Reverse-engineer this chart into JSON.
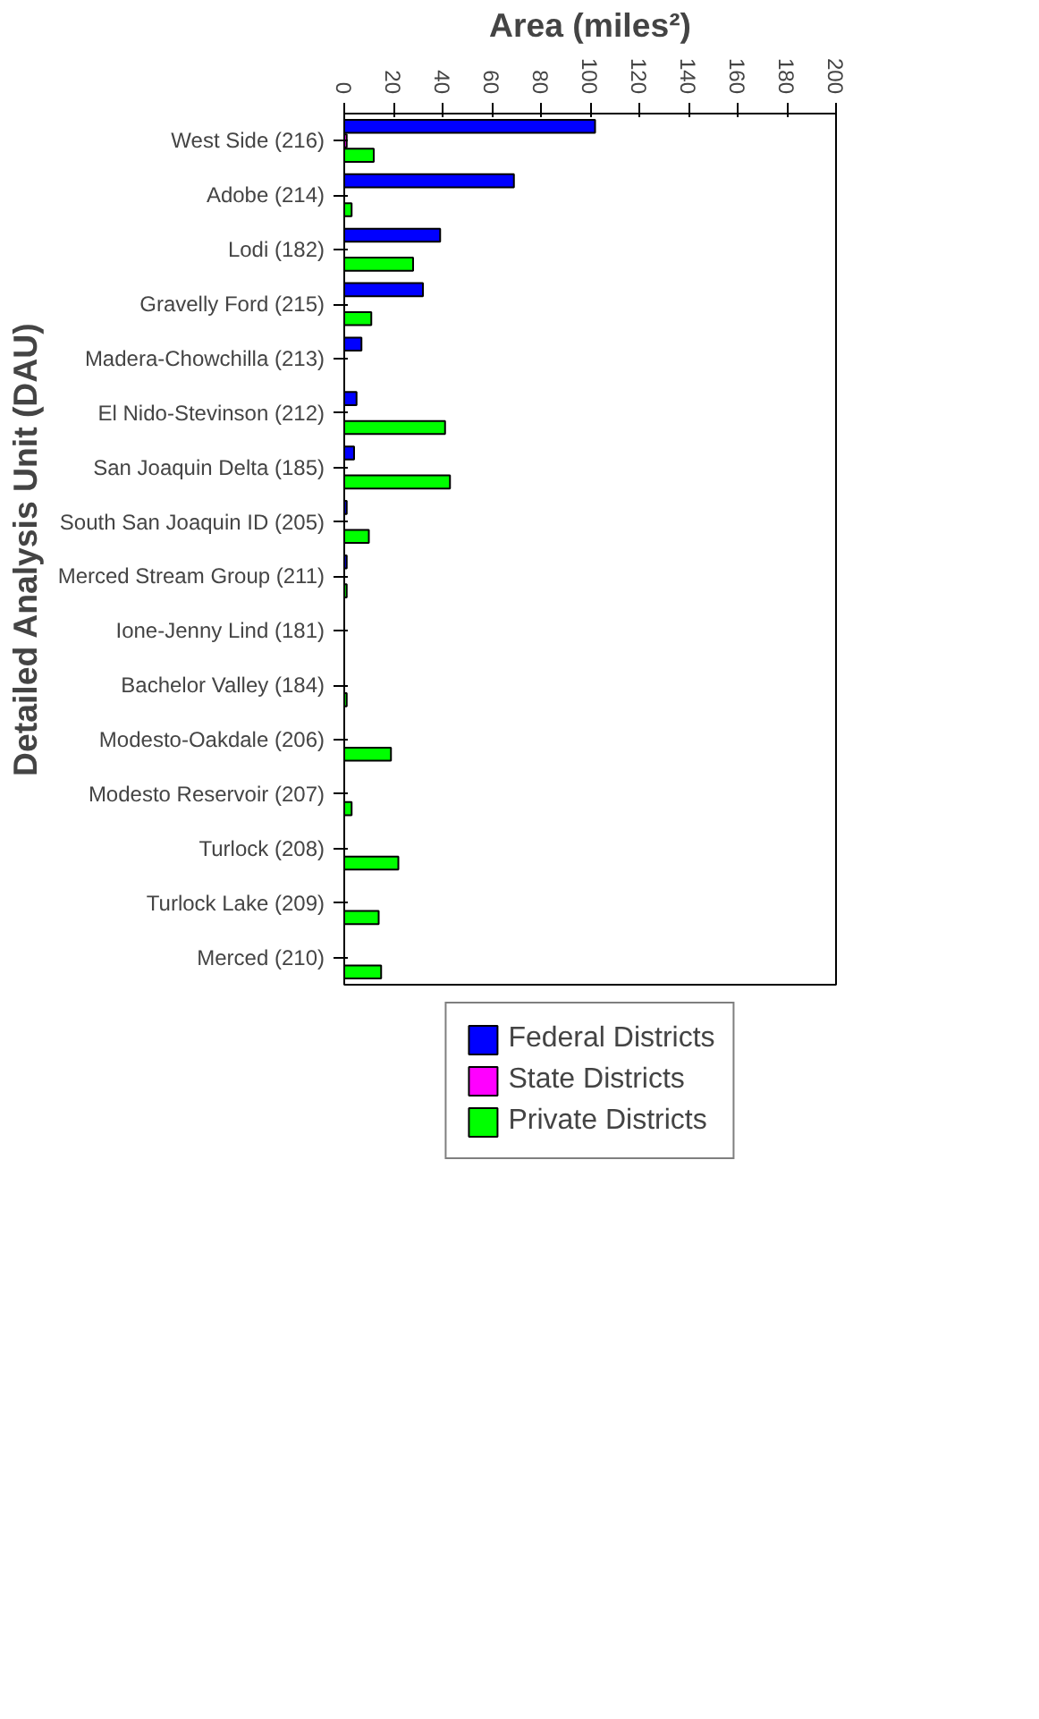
{
  "chart_data": {
    "type": "bar",
    "orientation": "horizontal",
    "xlabel": "Area (miles²)",
    "ylabel": "Detailed Analysis Unit (DAU)",
    "categories": [
      "West Side (216)",
      "Adobe (214)",
      "Lodi (182)",
      "Gravelly Ford (215)",
      "Madera-Chowchilla (213)",
      "El Nido-Stevinson (212)",
      "San Joaquin Delta (185)",
      "South San Joaquin ID (205)",
      "Merced Stream Group (211)",
      "Ione-Jenny Lind (181)",
      "Bachelor Valley (184)",
      "Modesto-Oakdale (206)",
      "Modesto Reservoir (207)",
      "Turlock (208)",
      "Turlock Lake (209)",
      "Merced (210)"
    ],
    "series": [
      {
        "name": "Federal Districts",
        "color": "#0000ff",
        "values": [
          102,
          69,
          39,
          32,
          7,
          5,
          4,
          1,
          1,
          null,
          null,
          null,
          null,
          null,
          null,
          null
        ]
      },
      {
        "name": "State Districts",
        "color": "#ff00ff",
        "values": [
          1,
          null,
          null,
          null,
          null,
          null,
          null,
          null,
          null,
          null,
          null,
          null,
          null,
          null,
          null,
          null
        ]
      },
      {
        "name": "Private Districts",
        "color": "#00ff00",
        "values": [
          12,
          3,
          28,
          11,
          null,
          41,
          43,
          10,
          1,
          null,
          1,
          19,
          3,
          22,
          14,
          15
        ]
      }
    ],
    "xlim": [
      0,
      200
    ],
    "xticks": [
      0,
      20,
      40,
      60,
      80,
      100,
      120,
      140,
      160,
      180,
      200
    ],
    "grid": false,
    "legend": "bottom"
  }
}
